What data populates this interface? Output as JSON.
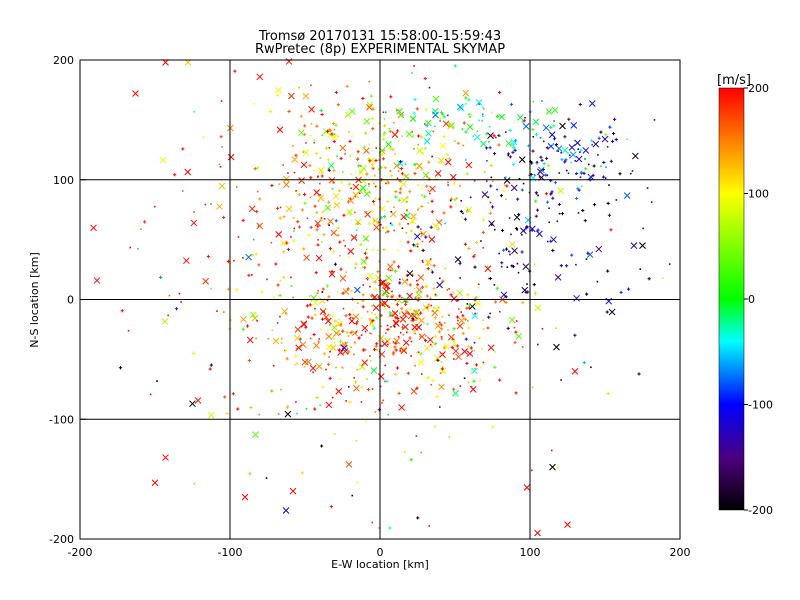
{
  "chart_data": {
    "type": "scatter",
    "title": "Tromsø 20170131 15:58:00-15:59:43",
    "subtitle": "RwPretec (8p) EXPERIMENTAL SKYMAP",
    "xlabel": "E-W location [km]",
    "ylabel": "N-S location [km]",
    "xlim": [
      -200,
      200
    ],
    "ylim": [
      -200,
      200
    ],
    "x_ticks": [
      -200,
      -100,
      0,
      100,
      200
    ],
    "y_ticks": [
      -200,
      -100,
      0,
      100,
      200
    ],
    "grid": true,
    "colorbar": {
      "label": "[m/s]",
      "range": [
        -200,
        200
      ],
      "ticks": [
        200,
        100,
        0,
        -100,
        -200
      ],
      "scale": "black-purple-blue-cyan-green-yellow-red"
    },
    "markers": [
      "x",
      "+",
      "."
    ],
    "clusters": [
      {
        "cx": -30,
        "cy": 60,
        "sx": 55,
        "sy": 70,
        "n": 260,
        "v": 175,
        "vs": 40
      },
      {
        "cx": 10,
        "cy": -20,
        "sx": 40,
        "sy": 25,
        "n": 420,
        "v": 160,
        "vs": 60
      },
      {
        "cx": 5,
        "cy": 100,
        "sx": 30,
        "sy": 35,
        "n": 260,
        "v": 110,
        "vs": 60
      },
      {
        "cx": 100,
        "cy": 50,
        "sx": 45,
        "sy": 45,
        "n": 160,
        "v": -160,
        "vs": 50
      },
      {
        "cx": 120,
        "cy": 120,
        "sx": 25,
        "sy": 15,
        "n": 110,
        "v": -110,
        "vs": 60
      },
      {
        "cx": 70,
        "cy": 150,
        "sx": 35,
        "sy": 15,
        "n": 70,
        "v": -20,
        "vs": 40
      },
      {
        "cx": 0,
        "cy": 0,
        "sx": 90,
        "sy": 100,
        "n": 250,
        "v": 80,
        "vs": 150
      }
    ],
    "notable_points": [
      {
        "x": -163,
        "y": 172,
        "v": 200,
        "m": "x"
      },
      {
        "x": -143,
        "y": 198,
        "v": 200,
        "m": "x"
      },
      {
        "x": -128,
        "y": 198,
        "v": 120,
        "m": "x"
      },
      {
        "x": -150,
        "y": -153,
        "v": 200,
        "m": "x"
      },
      {
        "x": -143,
        "y": -132,
        "v": 200,
        "m": "x"
      },
      {
        "x": -90,
        "y": -165,
        "v": 200,
        "m": "x"
      },
      {
        "x": -58,
        "y": -160,
        "v": 200,
        "m": "x"
      },
      {
        "x": -173,
        "y": -57,
        "v": -200,
        "m": "+"
      },
      {
        "x": -125,
        "y": -87,
        "v": -200,
        "m": "x"
      },
      {
        "x": 98,
        "y": -157,
        "v": 200,
        "m": "x"
      },
      {
        "x": 125,
        "y": -188,
        "v": 200,
        "m": "x"
      },
      {
        "x": 115,
        "y": -140,
        "v": -200,
        "m": "x"
      },
      {
        "x": 175,
        "y": 45,
        "v": -200,
        "m": "x"
      },
      {
        "x": 160,
        "y": 105,
        "v": -200,
        "m": "+"
      },
      {
        "x": 128,
        "y": 127,
        "v": -120,
        "m": "x"
      },
      {
        "x": 105,
        "y": -195,
        "v": 200,
        "m": "x"
      },
      {
        "x": 130,
        "y": -60,
        "v": 200,
        "m": "x"
      }
    ]
  }
}
